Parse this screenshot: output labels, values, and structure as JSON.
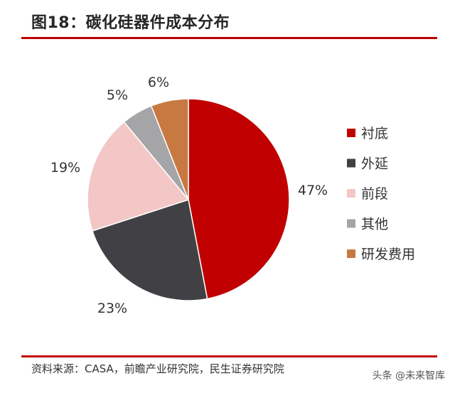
{
  "figure": {
    "title": "图18：碳化硅器件成本分布",
    "source": "资料来源：CASA，前瞻产业研究院，民生证券研究院",
    "watermark": "头条 @未来智库"
  },
  "chart_data": {
    "type": "pie",
    "title": "图18：碳化硅器件成本分布",
    "start_angle_deg": 0,
    "direction": "clockwise",
    "slices": [
      {
        "label": "衬底",
        "value": 47,
        "value_label": "47%",
        "color": "#c00000"
      },
      {
        "label": "外延",
        "value": 23,
        "value_label": "23%",
        "color": "#414145"
      },
      {
        "label": "前段",
        "value": 19,
        "value_label": "19%",
        "color": "#f2c7c6"
      },
      {
        "label": "其他",
        "value": 5,
        "value_label": "5%",
        "color": "#a5a5a7"
      },
      {
        "label": "研发费用",
        "value": 6,
        "value_label": "6%",
        "color": "#c87941"
      }
    ],
    "legend": {
      "position": "right"
    }
  }
}
